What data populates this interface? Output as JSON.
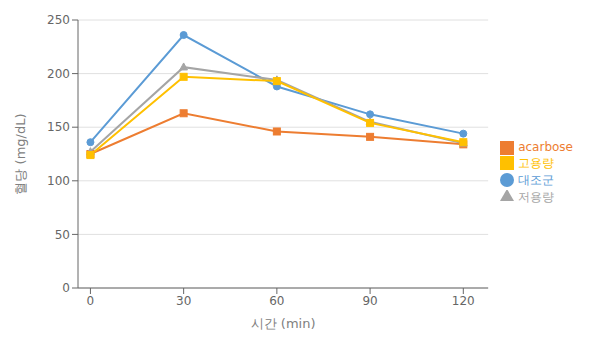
{
  "chart_data": {
    "type": "line",
    "x": [
      0,
      30,
      60,
      90,
      120
    ],
    "series": [
      {
        "name": "대조군",
        "color": "#5B9BD5",
        "marker": "circle",
        "values": [
          136,
          236,
          188,
          162,
          144
        ]
      },
      {
        "name": "acarbose",
        "color": "#ED7D31",
        "marker": "square",
        "values": [
          125,
          163,
          146,
          141,
          134
        ]
      },
      {
        "name": "저용량",
        "color": "#A5A5A5",
        "marker": "triangle",
        "values": [
          127,
          206,
          194,
          155,
          135
        ]
      },
      {
        "name": "고용량",
        "color": "#FFC000",
        "marker": "square",
        "values": [
          124,
          197,
          193,
          154,
          136
        ]
      }
    ],
    "xlabel": "시간 (min)",
    "ylabel": "혈당 (mg/dL)",
    "xlim": [
      -4,
      128
    ],
    "xticks": [
      0,
      30,
      60,
      90,
      120
    ],
    "ylim": [
      0,
      250
    ],
    "yticks": [
      0,
      50,
      100,
      150,
      200,
      250
    ],
    "grid": true,
    "legend": "right"
  }
}
